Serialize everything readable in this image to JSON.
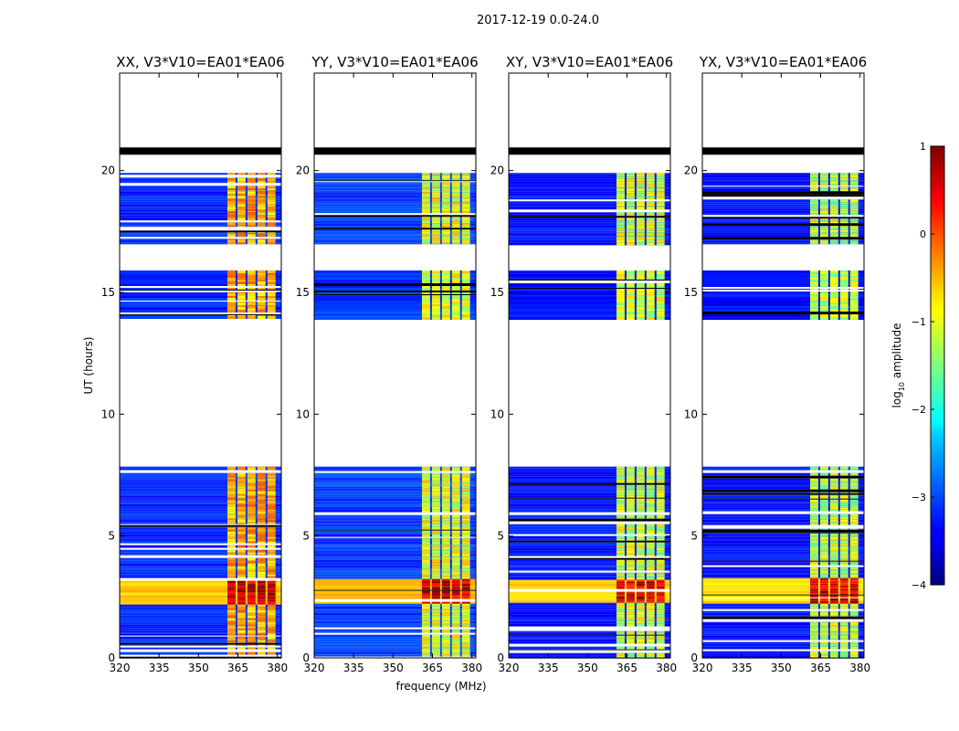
{
  "figure_title": "2017-12-19 0.0-24.0",
  "colorbar": {
    "label": "log10 amplitude",
    "label_main": "log",
    "label_sub": "10",
    "label_rest": " amplitude",
    "min": -4,
    "max": 1,
    "ticks": [
      "1",
      "0",
      "−1",
      "−2",
      "−3",
      "−4"
    ],
    "tick_values": [
      1,
      0,
      -1,
      -2,
      -3,
      -4
    ]
  },
  "chart_data": [
    {
      "type": "heatmap",
      "title": "XX, V3*V10=EA01*EA06",
      "xlabel": "",
      "ylabel": "UT (hours)",
      "xlim": [
        320,
        381.5
      ],
      "ylim": [
        0,
        24
      ],
      "xticks": [
        "320",
        "335",
        "350",
        "365",
        "380"
      ],
      "yticks": [
        "0",
        "5",
        "10",
        "15",
        "20"
      ],
      "data_blocks_hours": [
        [
          0,
          7.85
        ],
        [
          13.95,
          15.9
        ],
        [
          17.0,
          19.9
        ]
      ],
      "flagged_band_hours": [
        20.65,
        20.95
      ],
      "rfi_band_mhz": [
        361,
        380
      ],
      "background_log_amp": -3.2,
      "rfi_log_amp": -0.5,
      "strong_rfi_hours": [
        2.3,
        3.3
      ],
      "strong_log_amp": 0.7
    },
    {
      "type": "heatmap",
      "title": "YY, V3*V10=EA01*EA06",
      "xlabel": "frequency (MHz)",
      "ylabel": "",
      "xlim": [
        320,
        381.5
      ],
      "ylim": [
        0,
        24
      ],
      "xticks": [
        "320",
        "335",
        "350",
        "365",
        "380"
      ],
      "yticks": [
        "0",
        "5",
        "10",
        "15",
        "20"
      ],
      "data_blocks_hours": [
        [
          0,
          7.85
        ],
        [
          13.95,
          15.9
        ],
        [
          17.0,
          19.9
        ]
      ],
      "flagged_band_hours": [
        20.65,
        20.95
      ],
      "rfi_band_mhz": [
        361,
        380
      ],
      "background_log_amp": -3.1,
      "rfi_log_amp": -1.0,
      "strong_rfi_hours": [
        2.3,
        3.3
      ],
      "strong_log_amp": 0.6
    },
    {
      "type": "heatmap",
      "title": "XY, V3*V10=EA01*EA06",
      "xlabel": "",
      "ylabel": "",
      "xlim": [
        320,
        381.5
      ],
      "ylim": [
        0,
        24
      ],
      "xticks": [
        "320",
        "335",
        "350",
        "365",
        "380"
      ],
      "yticks": [
        "0",
        "5",
        "10",
        "15",
        "20"
      ],
      "data_blocks_hours": [
        [
          0,
          7.85
        ],
        [
          13.95,
          15.9
        ],
        [
          17.0,
          19.9
        ]
      ],
      "flagged_band_hours": [
        20.65,
        20.95
      ],
      "rfi_band_mhz": [
        361,
        380
      ],
      "background_log_amp": -3.3,
      "rfi_log_amp": -1.1,
      "strong_rfi_hours": [
        2.3,
        3.3
      ],
      "strong_log_amp": 0.6
    },
    {
      "type": "heatmap",
      "title": "YX, V3*V10=EA01*EA06",
      "xlabel": "",
      "ylabel": "",
      "xlim": [
        320,
        381.5
      ],
      "ylim": [
        0,
        24
      ],
      "xticks": [
        "320",
        "335",
        "350",
        "365",
        "380"
      ],
      "yticks": [
        "0",
        "5",
        "10",
        "15",
        "20"
      ],
      "data_blocks_hours": [
        [
          0,
          7.85
        ],
        [
          13.95,
          15.9
        ],
        [
          17.0,
          19.9
        ]
      ],
      "flagged_band_hours": [
        20.65,
        20.95
      ],
      "rfi_band_mhz": [
        361,
        380
      ],
      "background_log_amp": -3.3,
      "rfi_log_amp": -1.2,
      "strong_rfi_hours": [
        2.3,
        3.3
      ],
      "strong_log_amp": 0.6
    }
  ]
}
